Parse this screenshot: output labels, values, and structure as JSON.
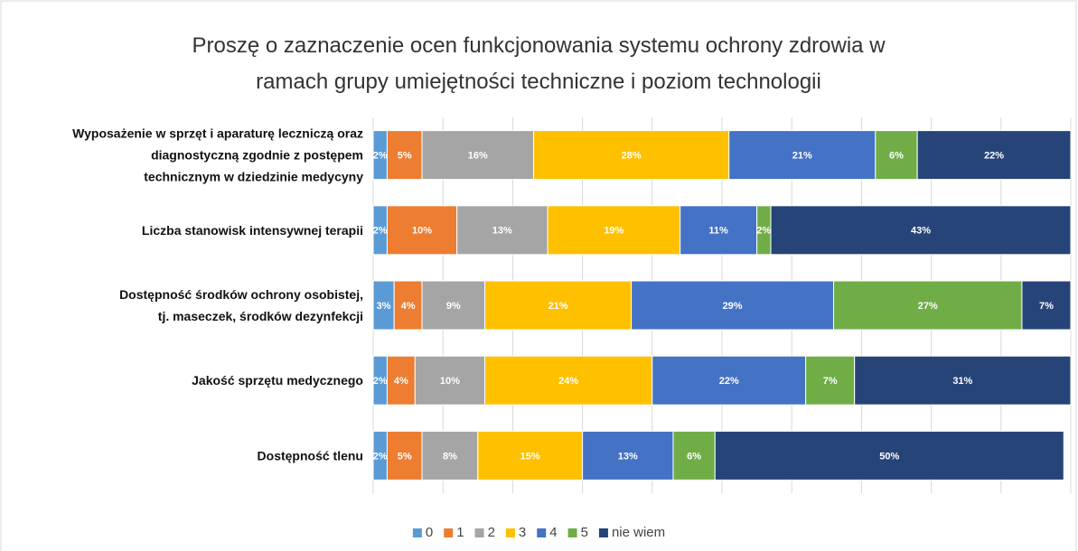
{
  "chart_data": {
    "type": "stacked_barh",
    "title": [
      "Proszę o zaznaczenie  ocen funkcjonowania systemu ochrony zdrowia w",
      "ramach grupy umiejętności techniczne i poziom technologii"
    ],
    "categories": [
      [
        "Wyposażenie w sprzęt i aparaturę leczniczą oraz",
        "diagnostyczną zgodnie z postępem",
        "technicznym w dziedzinie medycyny"
      ],
      [
        "Liczba stanowisk intensywnej terapii"
      ],
      [
        "Dostępność środków ochrony osobistej,",
        "tj.  maseczek, środków dezynfekcji"
      ],
      [
        "Jakość sprzętu medycznego"
      ],
      [
        "Dostępność tlenu"
      ]
    ],
    "series": [
      {
        "name": "0",
        "color": "#5b9bd5",
        "values": [
          2,
          2,
          3,
          2,
          2
        ],
        "value_labels": [
          "2%",
          "2%",
          "3%",
          "2%",
          "2%"
        ]
      },
      {
        "name": "1",
        "color": "#ed7d31",
        "values": [
          5,
          10,
          4,
          4,
          5
        ],
        "value_labels": [
          "5%",
          "10%",
          "4%",
          "4%",
          "5%"
        ]
      },
      {
        "name": "2",
        "color": "#a5a5a5",
        "values": [
          16,
          13,
          9,
          10,
          8
        ],
        "value_labels": [
          "16%",
          "13%",
          "9%",
          "10%",
          "8%"
        ]
      },
      {
        "name": "3",
        "color": "#ffc000",
        "values": [
          28,
          19,
          21,
          24,
          15
        ],
        "value_labels": [
          "28%",
          "19%",
          "21%",
          "24%",
          "15%"
        ]
      },
      {
        "name": "4",
        "color": "#4472c4",
        "values": [
          21,
          11,
          29,
          22,
          13
        ],
        "value_labels": [
          "21%",
          "11%",
          "29%",
          "22%",
          "13%"
        ]
      },
      {
        "name": "5",
        "color": "#70ad47",
        "values": [
          6,
          2,
          27,
          7,
          6
        ],
        "value_labels": [
          "6%",
          "2%",
          "27%",
          "7%",
          "6%"
        ]
      },
      {
        "name": "nie wiem",
        "color": "#264478",
        "values": [
          22,
          43,
          7,
          31,
          50
        ],
        "value_labels": [
          "22%",
          "43%",
          "7%",
          "31%",
          "50%"
        ]
      }
    ],
    "xlim": [
      0,
      100
    ],
    "xticks": [
      0,
      10,
      20,
      30,
      40,
      50,
      60,
      70,
      80,
      90,
      100
    ],
    "grid": true,
    "legend": "bottom"
  }
}
